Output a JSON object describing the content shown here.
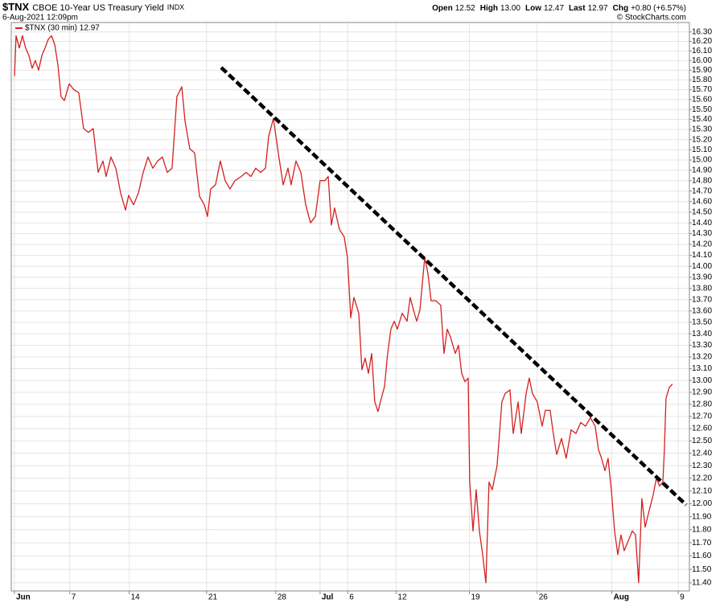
{
  "header": {
    "symbol": "$TNX",
    "name": "CBOE 10-Year US Treasury Yield",
    "exchange": "INDX",
    "datetime": "6-Aug-2021 12:09pm",
    "quote": [
      {
        "label": "Open",
        "value": "12.52"
      },
      {
        "label": "High",
        "value": "13.00"
      },
      {
        "label": "Low",
        "value": "12.47"
      },
      {
        "label": "Last",
        "value": "12.97"
      },
      {
        "label": "Chg",
        "value": "+0.80 (+6.57%)"
      }
    ],
    "credit": "© StockCharts.com"
  },
  "chart_data": {
    "type": "line",
    "yscale": "log",
    "grid": true,
    "legend": "top-left",
    "xlim": [
      -0.23,
      48.81
    ],
    "ylim": [
      11.34,
      16.4
    ],
    "xticks": [
      {
        "value": 0,
        "label": "Jun"
      },
      {
        "value": 4,
        "label": "7"
      },
      {
        "value": 8.3,
        "label": "14"
      },
      {
        "value": 13.9,
        "label": "21"
      },
      {
        "value": 18.9,
        "label": "28"
      },
      {
        "value": 22.1,
        "label": "Jul"
      },
      {
        "value": 24.1,
        "label": "6"
      },
      {
        "value": 27.6,
        "label": "12"
      },
      {
        "value": 32.9,
        "label": "19"
      },
      {
        "value": 37.8,
        "label": "26"
      },
      {
        "value": 43.2,
        "label": "Aug"
      },
      {
        "value": 48,
        "label": "9"
      }
    ],
    "yticks": [
      {
        "value": 11.4,
        "label": "11.40"
      },
      {
        "value": 11.5,
        "label": "11.50"
      },
      {
        "value": 11.6,
        "label": "11.60"
      },
      {
        "value": 11.7,
        "label": "11.70"
      },
      {
        "value": 11.8,
        "label": "11.80"
      },
      {
        "value": 11.9,
        "label": "11.90"
      },
      {
        "value": 12,
        "label": "12.00"
      },
      {
        "value": 12.1,
        "label": "12.10"
      },
      {
        "value": 12.2,
        "label": "12.20"
      },
      {
        "value": 12.3,
        "label": "12.30"
      },
      {
        "value": 12.4,
        "label": "12.40"
      },
      {
        "value": 12.5,
        "label": "12.50"
      },
      {
        "value": 12.6,
        "label": "12.60"
      },
      {
        "value": 12.7,
        "label": "12.70"
      },
      {
        "value": 12.8,
        "label": "12.80"
      },
      {
        "value": 12.9,
        "label": "12.90"
      },
      {
        "value": 13,
        "label": "13.00"
      },
      {
        "value": 13.1,
        "label": "13.10"
      },
      {
        "value": 13.2,
        "label": "13.20"
      },
      {
        "value": 13.3,
        "label": "13.30"
      },
      {
        "value": 13.4,
        "label": "13.40"
      },
      {
        "value": 13.5,
        "label": "13.50"
      },
      {
        "value": 13.6,
        "label": "13.60"
      },
      {
        "value": 13.7,
        "label": "13.70"
      },
      {
        "value": 13.8,
        "label": "13.80"
      },
      {
        "value": 13.9,
        "label": "13.90"
      },
      {
        "value": 14,
        "label": "14.00"
      },
      {
        "value": 14.1,
        "label": "14.10"
      },
      {
        "value": 14.2,
        "label": "14.20"
      },
      {
        "value": 14.3,
        "label": "14.30"
      },
      {
        "value": 14.4,
        "label": "14.40"
      },
      {
        "value": 14.5,
        "label": "14.50"
      },
      {
        "value": 14.6,
        "label": "14.60"
      },
      {
        "value": 14.7,
        "label": "14.70"
      },
      {
        "value": 14.8,
        "label": "14.80"
      },
      {
        "value": 14.9,
        "label": "14.90"
      },
      {
        "value": 15,
        "label": "15.00"
      },
      {
        "value": 15.1,
        "label": "15.10"
      },
      {
        "value": 15.2,
        "label": "15.20"
      },
      {
        "value": 15.3,
        "label": "15.30"
      },
      {
        "value": 15.4,
        "label": "15.40"
      },
      {
        "value": 15.5,
        "label": "15.50"
      },
      {
        "value": 15.6,
        "label": "15.60"
      },
      {
        "value": 15.7,
        "label": "15.70"
      },
      {
        "value": 15.8,
        "label": "15.80"
      },
      {
        "value": 15.9,
        "label": "15.90"
      },
      {
        "value": 16,
        "label": "16.00"
      },
      {
        "value": 16.1,
        "label": "16.10"
      },
      {
        "value": 16.2,
        "label": "16.20"
      },
      {
        "value": 16.3,
        "label": "16.30"
      }
    ],
    "x": [
      0,
      0.12,
      0.35,
      0.58,
      0.81,
      1.05,
      1.28,
      1.51,
      1.75,
      1.98,
      2.21,
      2.44,
      2.68,
      2.91,
      3.14,
      3.37,
      3.61,
      3.96,
      4.3,
      4.65,
      5.0,
      5.35,
      5.7,
      6.05,
      6.4,
      6.63,
      6.98,
      7.33,
      7.68,
      8.03,
      8.26,
      8.61,
      8.96,
      9.31,
      9.66,
      10.01,
      10.35,
      10.7,
      11.05,
      11.4,
      11.75,
      12.1,
      12.33,
      12.68,
      13.03,
      13.38,
      13.73,
      13.96,
      14.19,
      14.54,
      14.89,
      15.24,
      15.59,
      15.94,
      16.4,
      16.75,
      17.1,
      17.45,
      17.8,
      18.15,
      18.38,
      18.73,
      19.08,
      19.43,
      19.78,
      20.01,
      20.36,
      20.71,
      21.06,
      21.41,
      21.76,
      22.1,
      22.45,
      22.69,
      22.92,
      23.15,
      23.5,
      23.85,
      24.08,
      24.32,
      24.55,
      24.9,
      25.13,
      25.36,
      25.6,
      25.83,
      26.06,
      26.29,
      26.53,
      26.76,
      26.99,
      27.22,
      27.46,
      27.69,
      28.04,
      28.39,
      28.62,
      28.85,
      29.09,
      29.32,
      29.67,
      29.9,
      30.13,
      30.48,
      30.83,
      31.06,
      31.3,
      31.53,
      31.88,
      32.11,
      32.34,
      32.58,
      32.81,
      32.92,
      33.16,
      33.39,
      33.62,
      33.86,
      34.09,
      34.32,
      34.55,
      34.9,
      35.25,
      35.48,
      35.83,
      36.07,
      36.42,
      36.65,
      37.0,
      37.23,
      37.46,
      37.81,
      38.16,
      38.39,
      38.74,
      38.97,
      39.21,
      39.56,
      39.9,
      40.25,
      40.6,
      40.95,
      41.3,
      41.65,
      42.0,
      42.23,
      42.46,
      42.7,
      42.93,
      43.16,
      43.4,
      43.63,
      43.86,
      44.09,
      44.33,
      44.68,
      44.91,
      45.14,
      45.37,
      45.61,
      45.84,
      46.19,
      46.42,
      46.65,
      46.89,
      47.0,
      47.12,
      47.35,
      47.58
    ],
    "series": [
      {
        "name": "$TNX (30 min) 12.97",
        "color": "#d42020",
        "values": [
          15.84,
          16.26,
          16.13,
          16.26,
          16.13,
          16.05,
          15.92,
          16.0,
          15.9,
          16.05,
          16.13,
          16.22,
          16.26,
          16.17,
          15.96,
          15.63,
          15.59,
          15.76,
          15.7,
          15.67,
          15.31,
          15.27,
          15.31,
          14.88,
          14.99,
          14.84,
          15.03,
          14.92,
          14.68,
          14.52,
          14.66,
          14.57,
          14.68,
          14.88,
          15.03,
          14.92,
          14.99,
          15.03,
          14.88,
          14.92,
          15.63,
          15.73,
          15.39,
          15.11,
          15.07,
          14.65,
          14.57,
          14.46,
          14.72,
          14.76,
          14.99,
          14.8,
          14.72,
          14.8,
          14.84,
          14.88,
          14.84,
          14.92,
          14.88,
          14.92,
          15.23,
          15.41,
          15.07,
          14.76,
          14.92,
          14.76,
          14.99,
          14.88,
          14.57,
          14.4,
          14.46,
          14.8,
          14.8,
          14.84,
          14.38,
          14.54,
          14.34,
          14.27,
          14.08,
          13.54,
          13.72,
          13.58,
          13.09,
          13.19,
          13.06,
          13.23,
          12.82,
          12.74,
          12.85,
          12.95,
          13.23,
          13.44,
          13.51,
          13.44,
          13.58,
          13.51,
          13.72,
          13.61,
          13.51,
          13.61,
          14.08,
          13.94,
          13.69,
          13.69,
          13.65,
          13.23,
          13.44,
          13.37,
          13.23,
          13.3,
          13.06,
          12.99,
          13.02,
          12.17,
          11.79,
          12.11,
          11.79,
          11.61,
          11.4,
          12.17,
          12.11,
          12.3,
          12.82,
          12.89,
          12.92,
          12.56,
          12.82,
          12.56,
          12.89,
          13.02,
          12.89,
          12.82,
          12.62,
          12.75,
          12.75,
          12.56,
          12.39,
          12.52,
          12.36,
          12.59,
          12.56,
          12.65,
          12.62,
          12.69,
          12.62,
          12.43,
          12.36,
          12.26,
          12.36,
          12.11,
          11.79,
          11.61,
          11.76,
          11.64,
          11.7,
          11.79,
          11.76,
          11.4,
          12.04,
          11.82,
          11.92,
          12.07,
          12.2,
          12.14,
          12.17,
          12.43,
          12.85,
          12.94,
          12.97
        ]
      }
    ]
  }
}
